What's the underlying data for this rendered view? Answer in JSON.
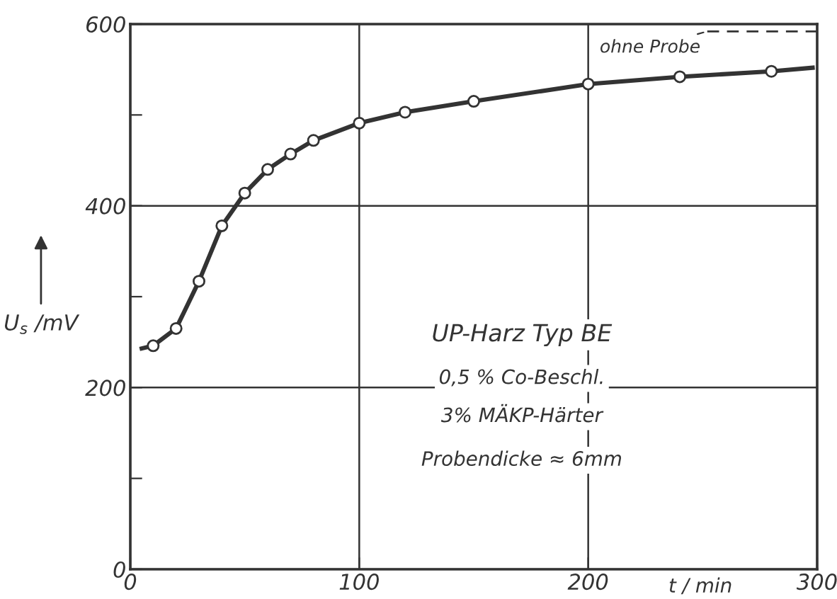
{
  "chart_data": {
    "type": "line",
    "xlabel": "t / min",
    "ylabel": "U$_{s}$ /mV",
    "xlim": [
      0,
      300
    ],
    "ylim": [
      0,
      600
    ],
    "xticks": [
      0,
      100,
      200,
      300
    ],
    "yticks": [
      0,
      {
        "value": 100,
        "label": null
      },
      200,
      {
        "value": 300,
        "label": null
      },
      400,
      {
        "value": 500,
        "label": null
      },
      600
    ],
    "grid": true,
    "series": [
      {
        "color": "#333333",
        "x": [
          5,
          10,
          20,
          30,
          40,
          50,
          60,
          70,
          80,
          100,
          120,
          150,
          200,
          240,
          280,
          298
        ],
        "values": [
          243,
          246,
          265,
          317,
          378,
          414,
          440,
          457,
          472,
          491,
          503,
          515,
          534,
          542,
          548,
          552
        ],
        "marker": "none",
        "line_style": "solid"
      },
      {
        "type": "scatter",
        "color": "#333333",
        "x": [
          10,
          20,
          30,
          40,
          50,
          60,
          70,
          80,
          100,
          120,
          150,
          200,
          240,
          280
        ],
        "values": [
          246,
          265,
          317,
          378,
          414,
          440,
          457,
          472,
          491,
          503,
          515,
          534,
          542,
          548
        ],
        "marker": "circle"
      },
      {
        "type": "line",
        "name": "ohne Probe",
        "color": "#333333",
        "x": [
          252,
          300
        ],
        "values": [
          592,
          592
        ],
        "marker": "none",
        "line_style": "dashed"
      }
    ],
    "annotations": [
      "UP-Harz Typ BE",
      "0,5 % Co-Beschl.",
      "3% MÄKP-Härter",
      "Probendicke ≈ 6mm"
    ]
  }
}
